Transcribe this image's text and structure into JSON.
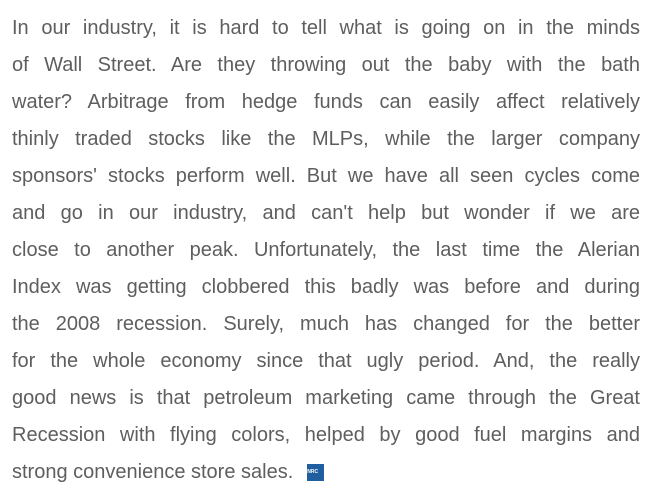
{
  "paragraph": {
    "lines": [
      "In our industry, it is hard to tell what is going on in the minds",
      "of Wall Street. Are they throwing out the baby with the bath",
      "water? Arbitrage from hedge funds can easily affect relatively",
      "thinly traded stocks like the MLPs, while the larger company",
      "sponsors' stocks perform well. But we have all seen cycles come",
      "and go in our industry, and can't help but wonder if we are",
      "close to another peak. Unfortunately, the last time the Alerian",
      "Index was getting clobbered this badly was before and during",
      "the 2008 recession. Surely, much has changed for the better",
      "for the whole economy since that ugly period. And, the really",
      "good news is that petroleum marketing came through the Great",
      "Recession with flying colors, helped by good fuel margins and",
      "strong convenience store sales."
    ],
    "badge": "NRC"
  }
}
